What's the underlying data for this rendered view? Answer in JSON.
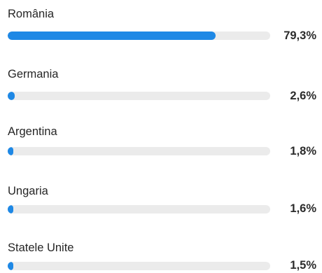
{
  "accent_color": "#1e88e5",
  "track_color": "#ebebeb",
  "items": [
    {
      "country": "România",
      "percent_label": "79,3%",
      "value": 79.3
    },
    {
      "country": "Germania",
      "percent_label": "2,6%",
      "value": 2.6
    },
    {
      "country": "Argentina",
      "percent_label": "1,8%",
      "value": 1.8
    },
    {
      "country": "Ungaria",
      "percent_label": "1,6%",
      "value": 1.6
    },
    {
      "country": "Statele Unite",
      "percent_label": "1,5%",
      "value": 1.5
    }
  ]
}
